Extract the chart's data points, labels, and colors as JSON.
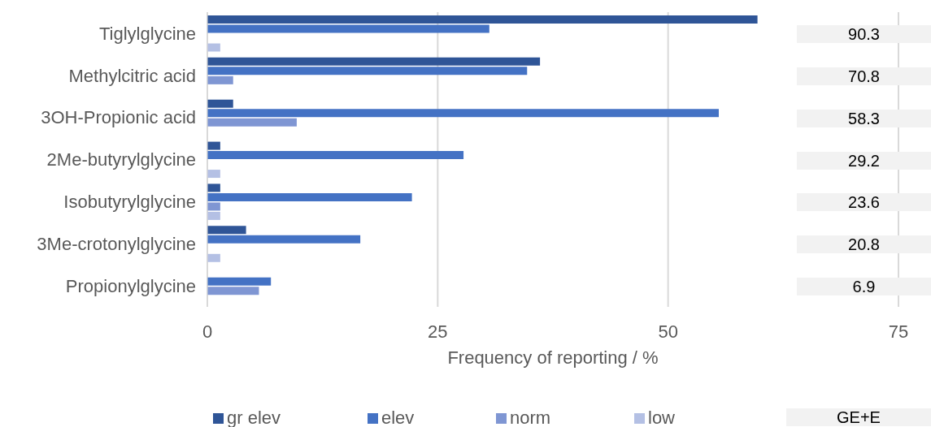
{
  "chart_data": {
    "type": "bar",
    "orientation": "horizontal",
    "xlabel": "Frequency of reporting / %",
    "categories": [
      "Tiglylglycine",
      "Methylcitric acid",
      "3OH-Propionic acid",
      "2Me-butyrylglycine",
      "Isobutyrylglycine",
      "3Me-crotonylglycine",
      "Propionylglycine"
    ],
    "series": [
      {
        "name": "gr elev",
        "color": "#2f5597",
        "values": [
          59.7,
          36.1,
          2.8,
          1.4,
          1.4,
          4.2,
          null
        ]
      },
      {
        "name": "elev",
        "color": "#4472c4",
        "values": [
          30.6,
          34.7,
          55.5,
          27.8,
          22.2,
          16.6,
          6.9
        ]
      },
      {
        "name": "norm",
        "color": "#7f96d3",
        "values": [
          null,
          2.8,
          9.7,
          null,
          1.4,
          null,
          5.6
        ]
      },
      {
        "name": "low",
        "color": "#b4c0e4",
        "values": [
          1.4,
          null,
          null,
          1.4,
          1.4,
          1.4,
          null
        ]
      }
    ],
    "xlim": [
      0,
      75
    ],
    "xticks": [
      0,
      25,
      50,
      75
    ],
    "grid": "x",
    "legend": "bottom",
    "annotations": [
      "90.3",
      "70.8",
      "58.3",
      "29.2",
      "23.6",
      "20.8",
      "6.9",
      "GE+E"
    ]
  }
}
